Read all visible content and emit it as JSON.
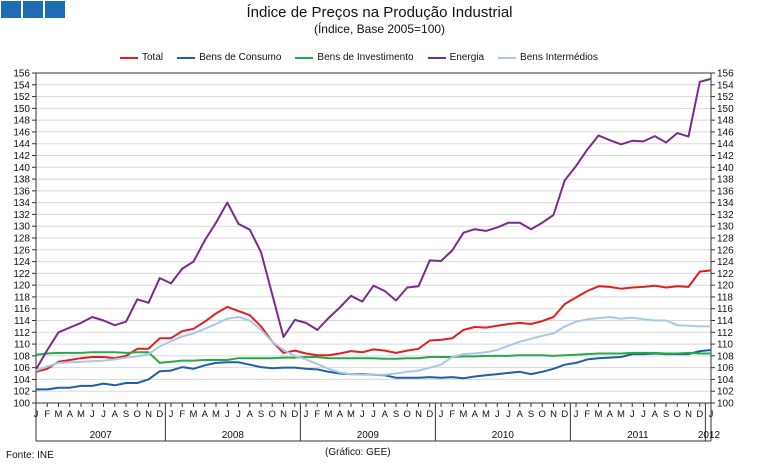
{
  "logo": {
    "icon": "logo-squares-icon",
    "color": "#1f6bb5"
  },
  "header": {
    "title": "Índice de Preços na Produção Industrial",
    "subtitle": "(Índice, Base 2005=100)"
  },
  "footer": {
    "source": "Fonte: INE",
    "credit": "(Gráfico: GEE)"
  },
  "chart_data": {
    "type": "line",
    "title": "Índice de Preços na Produção Industrial",
    "subtitle": "(Índice, Base 2005=100)",
    "xlabel": "",
    "ylabel": "",
    "ylim": [
      100,
      156
    ],
    "y_ticks": [
      100,
      102,
      104,
      106,
      108,
      110,
      112,
      114,
      116,
      118,
      120,
      122,
      124,
      126,
      128,
      130,
      132,
      134,
      136,
      138,
      140,
      142,
      144,
      146,
      148,
      150,
      152,
      154,
      156
    ],
    "grid": true,
    "legend_position": "top",
    "x": [
      "Jan 2007",
      "Fev 2007",
      "Mar 2007",
      "Abr 2007",
      "Mai 2007",
      "Jun 2007",
      "Jul 2007",
      "Ago 2007",
      "Set 2007",
      "Out 2007",
      "Nov 2007",
      "Dez 2007",
      "Jan 2008",
      "Fev 2008",
      "Mar 2008",
      "Abr 2008",
      "Mai 2008",
      "Jun 2008",
      "Jul 2008",
      "Ago 2008",
      "Set 2008",
      "Out 2008",
      "Nov 2008",
      "Dez 2008",
      "Jan 2009",
      "Fev 2009",
      "Mar 2009",
      "Abr 2009",
      "Mai 2009",
      "Jun 2009",
      "Jul 2009",
      "Ago 2009",
      "Set 2009",
      "Out 2009",
      "Nov 2009",
      "Dez 2009",
      "Jan 2010",
      "Fev 2010",
      "Mar 2010",
      "Abr 2010",
      "Mai 2010",
      "Jun 2010",
      "Jul 2010",
      "Ago 2010",
      "Set 2010",
      "Out 2010",
      "Nov 2010",
      "Dez 2010",
      "Jan 2011",
      "Fev 2011",
      "Mar 2011",
      "Abr 2011",
      "Mai 2011",
      "Jun 2011",
      "Jul 2011",
      "Ago 2011",
      "Set 2011",
      "Out 2011",
      "Nov 2011",
      "Dez 2011",
      "Jan 2012"
    ],
    "month_tick_labels": [
      "J",
      "F",
      "M",
      "A",
      "M",
      "J",
      "J",
      "A",
      "S",
      "O",
      "N",
      "D",
      "J",
      "F",
      "M",
      "A",
      "M",
      "J",
      "J",
      "A",
      "S",
      "O",
      "N",
      "D",
      "J",
      "F",
      "M",
      "A",
      "M",
      "J",
      "J",
      "A",
      "S",
      "O",
      "N",
      "D",
      "J",
      "F",
      "M",
      "A",
      "M",
      "J",
      "J",
      "A",
      "S",
      "O",
      "N",
      "D",
      "J",
      "F",
      "M",
      "A",
      "M",
      "J",
      "J",
      "A",
      "S",
      "O",
      "N",
      "D",
      "J"
    ],
    "year_labels": [
      "2007",
      "2008",
      "2009",
      "2010",
      "2011",
      "2012"
    ],
    "series": [
      {
        "name": "Total",
        "color": "#e0201f",
        "values": [
          105.3,
          105.8,
          107.0,
          107.3,
          107.6,
          107.8,
          107.8,
          107.6,
          108.0,
          109.2,
          109.2,
          111.0,
          111.0,
          112.2,
          112.6,
          113.8,
          115.2,
          116.3,
          115.6,
          114.9,
          113.0,
          110.4,
          108.5,
          108.9,
          108.4,
          108.1,
          108.1,
          108.4,
          108.8,
          108.6,
          109.1,
          108.9,
          108.5,
          108.9,
          109.2,
          110.6,
          110.7,
          111.0,
          112.4,
          112.9,
          112.8,
          113.1,
          113.4,
          113.6,
          113.4,
          113.9,
          114.6,
          116.8,
          117.9,
          119.0,
          119.8,
          119.7,
          119.4,
          119.6,
          119.7,
          119.9,
          119.6,
          119.8,
          119.7,
          122.3,
          122.5
        ]
      },
      {
        "name": "Bens de Consumo",
        "color": "#1f5faa",
        "values": [
          102.3,
          102.3,
          102.6,
          102.6,
          102.9,
          102.9,
          103.3,
          103.0,
          103.4,
          103.4,
          104.0,
          105.4,
          105.5,
          106.1,
          105.8,
          106.4,
          106.8,
          106.9,
          106.9,
          106.5,
          106.1,
          105.9,
          106.0,
          106.0,
          105.8,
          105.7,
          105.3,
          105.0,
          104.9,
          104.9,
          104.8,
          104.7,
          104.3,
          104.3,
          104.3,
          104.4,
          104.3,
          104.4,
          104.2,
          104.5,
          104.7,
          104.9,
          105.1,
          105.3,
          104.9,
          105.3,
          105.8,
          106.5,
          106.8,
          107.4,
          107.6,
          107.7,
          107.8,
          108.3,
          108.3,
          108.4,
          108.3,
          108.3,
          108.3,
          108.8,
          109.0
        ]
      },
      {
        "name": "Bens de Investimento",
        "color": "#27a84a",
        "values": [
          108.2,
          108.4,
          108.5,
          108.5,
          108.5,
          108.6,
          108.6,
          108.6,
          108.5,
          108.6,
          108.6,
          106.8,
          107.0,
          107.2,
          107.2,
          107.3,
          107.3,
          107.3,
          107.6,
          107.6,
          107.6,
          107.6,
          107.7,
          107.7,
          107.8,
          107.8,
          107.6,
          107.6,
          107.6,
          107.6,
          107.6,
          107.5,
          107.5,
          107.6,
          107.6,
          107.8,
          107.8,
          107.8,
          107.9,
          107.9,
          108.0,
          108.0,
          108.0,
          108.1,
          108.1,
          108.1,
          108.0,
          108.1,
          108.2,
          108.3,
          108.4,
          108.4,
          108.4,
          108.5,
          108.5,
          108.5,
          108.4,
          108.4,
          108.5,
          108.4,
          108.4
        ]
      },
      {
        "name": "Energia",
        "color": "#7b2a8e",
        "values": [
          105.7,
          109.0,
          112.0,
          112.8,
          113.6,
          114.6,
          114.0,
          113.2,
          113.8,
          117.6,
          117.0,
          121.2,
          120.3,
          122.8,
          124.0,
          127.6,
          130.6,
          134.0,
          130.4,
          129.4,
          125.6,
          118.4,
          111.2,
          114.1,
          113.6,
          112.4,
          114.4,
          116.2,
          118.2,
          117.2,
          119.9,
          119.0,
          117.4,
          119.6,
          119.8,
          124.2,
          124.1,
          125.9,
          128.9,
          129.5,
          129.2,
          129.8,
          130.6,
          130.6,
          129.5,
          130.6,
          131.9,
          137.8,
          140.2,
          143.0,
          145.4,
          144.6,
          143.9,
          144.5,
          144.4,
          145.3,
          144.2,
          145.8,
          145.2,
          154.5,
          155.0
        ]
      },
      {
        "name": "Bens Intermédios",
        "color": "#a9c8e8",
        "values": [
          105.5,
          106.2,
          106.8,
          106.9,
          107.0,
          107.1,
          107.2,
          107.4,
          107.7,
          107.9,
          108.3,
          109.6,
          110.5,
          111.3,
          111.8,
          112.6,
          113.4,
          114.3,
          114.6,
          114.0,
          112.4,
          110.4,
          109.0,
          108.0,
          107.4,
          106.6,
          105.8,
          105.2,
          104.9,
          104.8,
          104.8,
          104.8,
          105.0,
          105.3,
          105.5,
          106.0,
          106.5,
          107.8,
          108.3,
          108.4,
          108.6,
          109.0,
          109.7,
          110.4,
          110.9,
          111.4,
          111.8,
          113.0,
          113.8,
          114.2,
          114.4,
          114.6,
          114.3,
          114.5,
          114.2,
          114.0,
          114.0,
          113.2,
          113.1,
          113.0,
          113.0
        ]
      }
    ]
  }
}
